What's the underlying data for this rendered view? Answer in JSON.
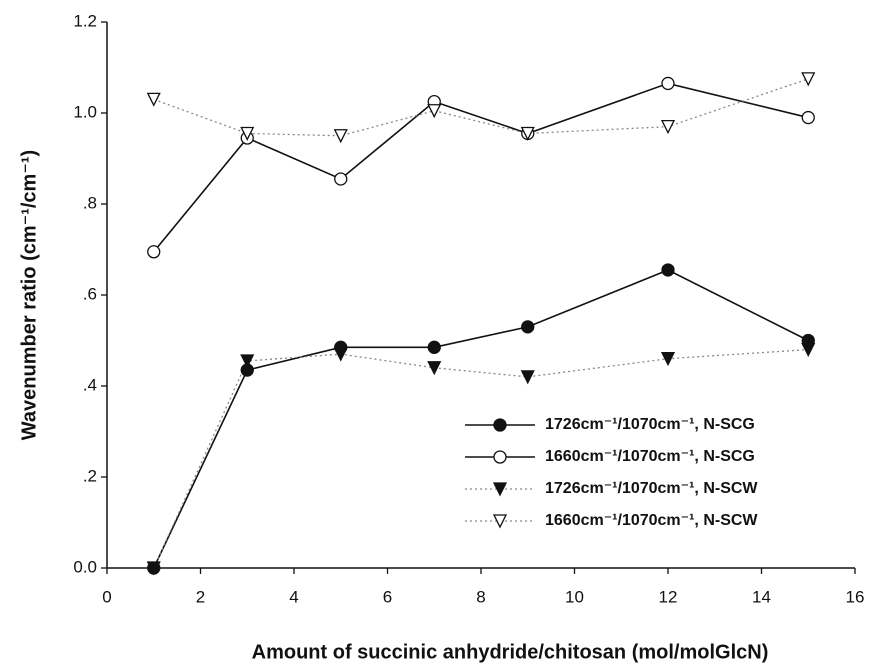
{
  "chart_data": {
    "type": "line",
    "xlabel": "Amount of succinic anhydride/chitosan (mol/molGlcN)",
    "ylabel": "Wavenumber ratio (cm⁻¹/cm⁻¹)",
    "x": [
      1,
      3,
      5,
      7,
      9,
      12,
      15
    ],
    "series": [
      {
        "name": "1726cm⁻¹/1070cm⁻¹, N-SCG",
        "color": "#111111",
        "marker": "circle",
        "filled": true,
        "dashed": false,
        "values": [
          0,
          0.435,
          0.485,
          0.485,
          0.53,
          0.655,
          0.5
        ]
      },
      {
        "name": "1660cm⁻¹/1070cm⁻¹, N-SCG",
        "color": "#111111",
        "marker": "circle",
        "filled": false,
        "dashed": false,
        "values": [
          0.695,
          0.945,
          0.855,
          1.025,
          0.955,
          1.065,
          0.99
        ]
      },
      {
        "name": "1726cm⁻¹/1070cm⁻¹, N-SCW",
        "color": "#111111",
        "marker": "triangle",
        "filled": true,
        "dashed": true,
        "values": [
          0,
          0.455,
          0.47,
          0.44,
          0.42,
          0.46,
          0.48
        ]
      },
      {
        "name": "1660cm⁻¹/1070cm⁻¹, N-SCW",
        "color": "#111111",
        "marker": "triangle",
        "filled": false,
        "dashed": true,
        "values": [
          1.03,
          0.955,
          0.95,
          1.005,
          0.955,
          0.97,
          1.075
        ]
      }
    ],
    "xlim": [
      0,
      16
    ],
    "xticks": [
      0,
      2,
      4,
      6,
      8,
      10,
      12,
      14,
      16
    ],
    "ylim": [
      0,
      1.2
    ],
    "yticks": [
      {
        "value": 0,
        "label": "0.0"
      },
      {
        "value": 0.2,
        "label": ".2"
      },
      {
        "value": 0.4,
        "label": ".4"
      },
      {
        "value": 0.6,
        "label": ".6"
      },
      {
        "value": 0.8,
        "label": ".8"
      },
      {
        "value": 1.0,
        "label": "1.0"
      },
      1.2
    ],
    "legend": "lower right",
    "grid": false
  }
}
